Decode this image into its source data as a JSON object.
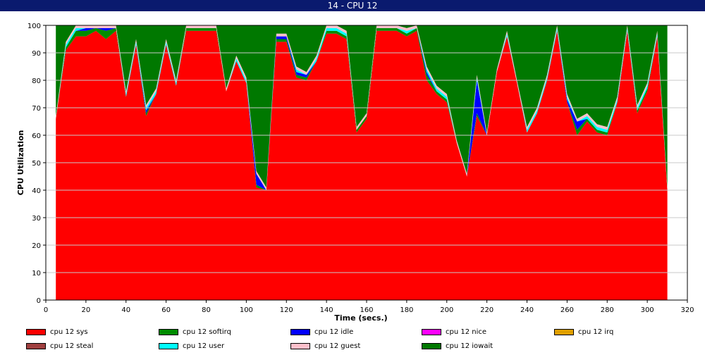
{
  "window": {
    "title": "14 - CPU 12"
  },
  "chart_data": {
    "type": "area",
    "title": "14 - CPU 12",
    "xlabel": "Time (secs.)",
    "ylabel": "CPU Utilization",
    "xlim": [
      0,
      320
    ],
    "ylim": [
      0,
      100
    ],
    "x_ticks": [
      0,
      20,
      40,
      60,
      80,
      100,
      120,
      140,
      160,
      180,
      200,
      220,
      240,
      260,
      280,
      300,
      320
    ],
    "y_ticks": [
      0,
      10,
      20,
      30,
      40,
      50,
      60,
      70,
      80,
      90,
      100
    ],
    "grid": "horizontal",
    "legend_position": "bottom",
    "stacked": true,
    "x": [
      5,
      10,
      15,
      20,
      25,
      30,
      35,
      40,
      45,
      50,
      55,
      60,
      65,
      70,
      75,
      80,
      85,
      90,
      95,
      100,
      105,
      110,
      115,
      120,
      125,
      130,
      135,
      140,
      145,
      150,
      155,
      160,
      165,
      170,
      175,
      180,
      185,
      190,
      195,
      200,
      205,
      210,
      215,
      220,
      225,
      230,
      235,
      240,
      245,
      250,
      255,
      260,
      265,
      270,
      275,
      280,
      285,
      290,
      295,
      300,
      305,
      310
    ],
    "series": [
      {
        "name": "cpu 12 sys",
        "color": "#ff0000",
        "values": [
          66,
          91,
          96,
          96,
          98,
          95,
          98,
          74,
          93,
          67,
          75,
          93,
          78,
          98,
          98,
          98,
          98,
          76,
          87,
          79,
          41,
          40,
          94,
          94,
          81,
          80,
          87,
          97,
          97,
          95,
          61,
          66,
          98,
          98,
          98,
          96,
          98,
          80,
          75,
          72,
          57,
          45,
          67,
          60,
          83,
          96,
          79,
          61,
          68,
          80,
          98,
          72,
          60,
          65,
          61,
          60,
          72,
          98,
          68,
          76,
          96,
          40
        ]
      },
      {
        "name": "cpu 12 softirq",
        "color": "#008c00",
        "values": [
          0,
          1,
          2,
          2,
          1,
          3,
          1,
          0,
          0,
          1,
          0,
          0,
          0,
          1,
          1,
          1,
          1,
          0,
          0,
          0,
          1,
          0,
          1,
          1,
          1,
          1,
          0,
          1,
          1,
          1,
          1,
          1,
          1,
          1,
          1,
          1,
          1,
          2,
          1,
          1,
          0,
          0,
          1,
          0,
          0,
          0,
          0,
          0,
          0,
          0,
          0,
          0,
          2,
          1,
          1,
          1,
          0,
          0,
          1,
          1,
          0,
          0
        ]
      },
      {
        "name": "cpu 12 idle",
        "color": "#0000ff",
        "values": [
          0,
          0,
          0,
          1,
          0,
          1,
          0,
          0,
          0,
          1,
          0,
          0,
          0,
          0,
          0,
          0,
          0,
          0,
          0,
          0,
          4,
          0,
          1,
          1,
          1,
          1,
          0,
          0,
          0,
          0,
          0,
          0,
          0,
          0,
          0,
          0,
          0,
          1,
          0,
          0,
          0,
          0,
          12,
          0,
          0,
          0,
          0,
          0,
          0,
          0,
          0,
          1,
          3,
          0,
          0,
          0,
          0,
          0,
          0,
          0,
          0,
          0
        ]
      },
      {
        "name": "cpu 12 nice",
        "color": "#ff00ff",
        "values": [
          0,
          0,
          0,
          0,
          0,
          0,
          0,
          0,
          0,
          0,
          0,
          0,
          0,
          0,
          0,
          0,
          0,
          0,
          0,
          0,
          0,
          0,
          0,
          0,
          0,
          0,
          0,
          0,
          0,
          0,
          0,
          0,
          0,
          0,
          0,
          0,
          0,
          0,
          0,
          0,
          0,
          0,
          0,
          0,
          0,
          0,
          0,
          0,
          0,
          0,
          0,
          0,
          0,
          0,
          0,
          0,
          0,
          0,
          0,
          0,
          0,
          0
        ]
      },
      {
        "name": "cpu 12 irq",
        "color": "#e0a000",
        "values": [
          0,
          0,
          0,
          0,
          0,
          0,
          0,
          0,
          0,
          0,
          0,
          0,
          0,
          0,
          0,
          0,
          0,
          0,
          0,
          0,
          0,
          0,
          0,
          0,
          0,
          0,
          0,
          0,
          0,
          0,
          0,
          0,
          0,
          0,
          0,
          0,
          0,
          0,
          0,
          0,
          0,
          0,
          0,
          0,
          0,
          0,
          0,
          0,
          0,
          0,
          0,
          0,
          0,
          0,
          0,
          0,
          0,
          0,
          0,
          0,
          0,
          0
        ]
      },
      {
        "name": "cpu 12 steal",
        "color": "#a04040",
        "values": [
          0,
          0,
          0,
          0,
          0,
          0,
          0,
          0,
          0,
          0,
          0,
          0,
          0,
          0,
          0,
          0,
          0,
          0,
          0,
          0,
          0,
          0,
          0,
          0,
          0,
          0,
          0,
          0,
          0,
          0,
          0,
          0,
          0,
          0,
          0,
          0,
          0,
          0,
          0,
          0,
          0,
          0,
          0,
          0,
          0,
          0,
          0,
          0,
          0,
          0,
          0,
          0,
          0,
          0,
          0,
          0,
          0,
          0,
          0,
          0,
          0,
          0
        ]
      },
      {
        "name": "cpu 12 user",
        "color": "#00ffff",
        "values": [
          0,
          1,
          1,
          0,
          0,
          0,
          0,
          1,
          1,
          1,
          1,
          1,
          1,
          0,
          0,
          0,
          0,
          0,
          1,
          1,
          0,
          0,
          0,
          0,
          1,
          0,
          1,
          1,
          1,
          1,
          0,
          0,
          0,
          0,
          0,
          1,
          0,
          1,
          1,
          1,
          0,
          0,
          1,
          0,
          0,
          1,
          0,
          1,
          1,
          1,
          1,
          1,
          0,
          1,
          1,
          1,
          1,
          1,
          1,
          1,
          1,
          0
        ]
      },
      {
        "name": "cpu 12 guest",
        "color": "#ffc0cb",
        "values": [
          1,
          1,
          1,
          1,
          1,
          1,
          1,
          1,
          1,
          1,
          1,
          1,
          1,
          1,
          1,
          1,
          1,
          1,
          1,
          1,
          1,
          1,
          1,
          1,
          1,
          1,
          1,
          1,
          1,
          1,
          1,
          1,
          1,
          1,
          1,
          1,
          1,
          1,
          1,
          1,
          1,
          1,
          1,
          1,
          1,
          1,
          1,
          1,
          1,
          1,
          1,
          1,
          1,
          1,
          1,
          1,
          1,
          1,
          1,
          1,
          1,
          1
        ]
      },
      {
        "name": "cpu 12 iowait",
        "color": "#007800",
        "values": [
          33,
          6,
          0,
          0,
          0,
          0,
          0,
          24,
          5,
          29,
          23,
          5,
          20,
          0,
          0,
          0,
          0,
          23,
          11,
          19,
          53,
          59,
          3,
          3,
          16,
          17,
          11,
          0,
          0,
          2,
          37,
          32,
          0,
          0,
          0,
          1,
          0,
          15,
          22,
          25,
          42,
          54,
          18,
          39,
          16,
          2,
          20,
          37,
          30,
          18,
          0,
          25,
          34,
          32,
          36,
          37,
          26,
          0,
          29,
          21,
          2,
          59
        ]
      }
    ]
  }
}
